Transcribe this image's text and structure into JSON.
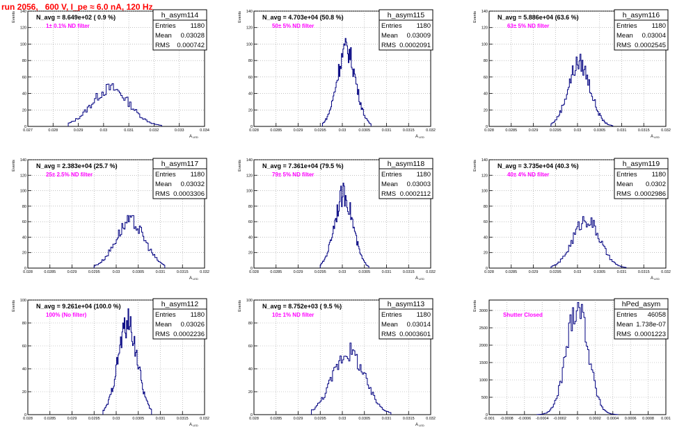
{
  "header": {
    "run_title": "run 2056,   600 V, I_pe ≈ 6.0 nA, 120 Hz"
  },
  "colors": {
    "histogram": "#000080",
    "filter_text": "#ff00ff",
    "title_text": "#ff0000",
    "grid": "#999999"
  },
  "chart_data": [
    {
      "type": "histogram",
      "name": "h_asym114",
      "navg": "N_avg = 8.649e+02 ( 0.9 %)",
      "label": "1± 0.1% ND filter",
      "stats": [
        [
          "Entries",
          "1180"
        ],
        [
          "Mean",
          "0.03028"
        ],
        [
          "RMS",
          "0.000742"
        ]
      ],
      "xlim": [
        0.027,
        0.034
      ],
      "ylim": [
        0,
        140
      ],
      "xticks": [
        "0.027",
        "0.028",
        "0.029",
        "0.03",
        "0.031",
        "0.032",
        "0.033",
        "0.034"
      ],
      "yticks": [
        "20",
        "40",
        "60",
        "80",
        "100",
        "120",
        "140"
      ],
      "xlabel": "A_LED",
      "ylabel": "Events",
      "mean": 0.03028,
      "sigma": 0.00074,
      "peak": 46,
      "range": [
        0.0286,
        0.0323
      ],
      "grid": true
    },
    {
      "type": "histogram",
      "name": "h_asym115",
      "navg": "N_avg = 4.703e+04 (50.8 %)",
      "label": "50± 5% ND filter",
      "stats": [
        [
          "Entries",
          "1180"
        ],
        [
          "Mean",
          "0.03009"
        ],
        [
          "RMS",
          "0.0002091"
        ]
      ],
      "xlim": [
        0.028,
        0.032
      ],
      "ylim": [
        0,
        140
      ],
      "xticks": [
        "0.028",
        "0.0285",
        "0.029",
        "0.0295",
        "0.03",
        "0.0305",
        "0.031",
        "0.0315",
        "0.032"
      ],
      "yticks": [
        "20",
        "40",
        "60",
        "80",
        "100",
        "120",
        "140"
      ],
      "xlabel": "A_LED",
      "ylabel": "Events",
      "mean": 0.03009,
      "sigma": 0.00021,
      "peak": 94,
      "range": [
        0.02955,
        0.03065
      ],
      "grid": true
    },
    {
      "type": "histogram",
      "name": "h_asym116",
      "navg": "N_avg = 5.886e+04 (63.6 %)",
      "label": "63± 5% ND filter",
      "stats": [
        [
          "Entries",
          "1180"
        ],
        [
          "Mean",
          "0.03004"
        ],
        [
          "RMS",
          "0.0002545"
        ]
      ],
      "xlim": [
        0.028,
        0.032
      ],
      "ylim": [
        0,
        140
      ],
      "xticks": [
        "0.028",
        "0.0285",
        "0.029",
        "0.0295",
        "0.03",
        "0.0305",
        "0.031",
        "0.0315",
        "0.032"
      ],
      "yticks": [
        "20",
        "40",
        "60",
        "80",
        "100",
        "120",
        "140"
      ],
      "xlabel": "A_LED",
      "ylabel": "Events",
      "mean": 0.03004,
      "sigma": 0.00025,
      "peak": 77,
      "range": [
        0.0294,
        0.0308
      ],
      "grid": true
    },
    {
      "type": "histogram",
      "name": "h_asym117",
      "navg": "N_avg = 2.383e+04 (25.7 %)",
      "label": "25± 2.5% ND filter",
      "stats": [
        [
          "Entries",
          "1180"
        ],
        [
          "Mean",
          "0.03032"
        ],
        [
          "RMS",
          "0.0003306"
        ]
      ],
      "xlim": [
        0.028,
        0.032
      ],
      "ylim": [
        0,
        140
      ],
      "xticks": [
        "0.028",
        "0.0285",
        "0.029",
        "0.0295",
        "0.03",
        "0.0305",
        "0.031",
        "0.0315",
        "0.032"
      ],
      "yticks": [
        "20",
        "40",
        "60",
        "80",
        "100",
        "120",
        "140"
      ],
      "xlabel": "A_LED",
      "ylabel": "Events",
      "mean": 0.03032,
      "sigma": 0.00033,
      "peak": 60,
      "range": [
        0.0295,
        0.0311
      ],
      "grid": true
    },
    {
      "type": "histogram",
      "name": "h_asym118",
      "navg": "N_avg = 7.361e+04 (79.5 %)",
      "label": "79± 5% ND filter",
      "stats": [
        [
          "Entries",
          "1180"
        ],
        [
          "Mean",
          "0.03003"
        ],
        [
          "RMS",
          "0.0002112"
        ]
      ],
      "xlim": [
        0.028,
        0.032
      ],
      "ylim": [
        0,
        140
      ],
      "xticks": [
        "0.028",
        "0.0285",
        "0.029",
        "0.0295",
        "0.03",
        "0.0305",
        "0.031",
        "0.0315",
        "0.032"
      ],
      "yticks": [
        "20",
        "40",
        "60",
        "80",
        "100",
        "120",
        "140"
      ],
      "xlabel": "A_LED",
      "ylabel": "Events",
      "mean": 0.03003,
      "sigma": 0.00021,
      "peak": 95,
      "range": [
        0.0295,
        0.0306
      ],
      "grid": true
    },
    {
      "type": "histogram",
      "name": "h_asym119",
      "navg": "N_avg = 3.735e+04 (40.3 %)",
      "label": "40± 4% ND filter",
      "stats": [
        [
          "Entries",
          "1180"
        ],
        [
          "Mean",
          "0.0302"
        ],
        [
          "RMS",
          "0.0002986"
        ]
      ],
      "xlim": [
        0.028,
        0.032
      ],
      "ylim": [
        0,
        140
      ],
      "xticks": [
        "0.028",
        "0.0285",
        "0.029",
        "0.0295",
        "0.03",
        "0.0305",
        "0.031",
        "0.0315",
        "0.032"
      ],
      "yticks": [
        "20",
        "40",
        "60",
        "80",
        "100",
        "120",
        "140"
      ],
      "xlabel": "A_LED",
      "ylabel": "Events",
      "mean": 0.0302,
      "sigma": 0.0003,
      "peak": 63,
      "range": [
        0.0294,
        0.0311
      ],
      "grid": true
    },
    {
      "type": "histogram",
      "name": "h_asym112",
      "navg": "N_avg = 9.261e+04 (100.0 %)",
      "label": "100% (No filter)",
      "stats": [
        [
          "Entries",
          "1180"
        ],
        [
          "Mean",
          "0.03026"
        ],
        [
          "RMS",
          "0.0002236"
        ]
      ],
      "xlim": [
        0.028,
        0.032
      ],
      "ylim": [
        0,
        100
      ],
      "xticks": [
        "0.028",
        "0.0285",
        "0.029",
        "0.0295",
        "0.03",
        "0.0305",
        "0.031",
        "0.0315",
        "0.032"
      ],
      "yticks": [
        "20",
        "40",
        "60",
        "80",
        "100"
      ],
      "xlabel": "A_LED",
      "ylabel": "Events",
      "mean": 0.03026,
      "sigma": 0.00022,
      "peak": 80,
      "range": [
        0.0297,
        0.0308
      ],
      "grid": true
    },
    {
      "type": "histogram",
      "name": "h_asym113",
      "navg": "N_avg = 8.752e+03 ( 9.5 %)",
      "label": "10± 1% ND filter",
      "stats": [
        [
          "Entries",
          "1180"
        ],
        [
          "Mean",
          "0.03014"
        ],
        [
          "RMS",
          "0.0003601"
        ]
      ],
      "xlim": [
        0.028,
        0.032
      ],
      "ylim": [
        0,
        100
      ],
      "xticks": [
        "0.028",
        "0.0285",
        "0.029",
        "0.0295",
        "0.03",
        "0.0305",
        "0.031",
        "0.0315",
        "0.032"
      ],
      "yticks": [
        "20",
        "40",
        "60",
        "80",
        "100"
      ],
      "xlabel": "A_LED",
      "ylabel": "Events",
      "mean": 0.03014,
      "sigma": 0.00036,
      "peak": 55,
      "range": [
        0.0293,
        0.0311
      ],
      "grid": true
    },
    {
      "type": "histogram",
      "name": "hPed_asym",
      "navg": "",
      "label": "Shutter Closed",
      "stats": [
        [
          "Entries",
          "46058"
        ],
        [
          "Mean",
          "1.738e-07"
        ],
        [
          "RMS",
          "0.0001223"
        ]
      ],
      "xlim": [
        -0.001,
        0.001
      ],
      "ylim": [
        0,
        3300
      ],
      "xticks": [
        "-0.001",
        "-0.0008",
        "-0.0006",
        "-0.0004",
        "-0.0002",
        "0",
        "0.0002",
        "0.0004",
        "0.0006",
        "0.0008",
        "0.001"
      ],
      "yticks": [
        "500",
        "1000",
        "1500",
        "2000",
        "2500",
        "3000"
      ],
      "xlabel": "",
      "ylabel": "Events",
      "mean": 0.0,
      "sigma": 0.000122,
      "peak": 3180,
      "range": [
        -0.00046,
        0.00046
      ],
      "grid": true
    }
  ]
}
